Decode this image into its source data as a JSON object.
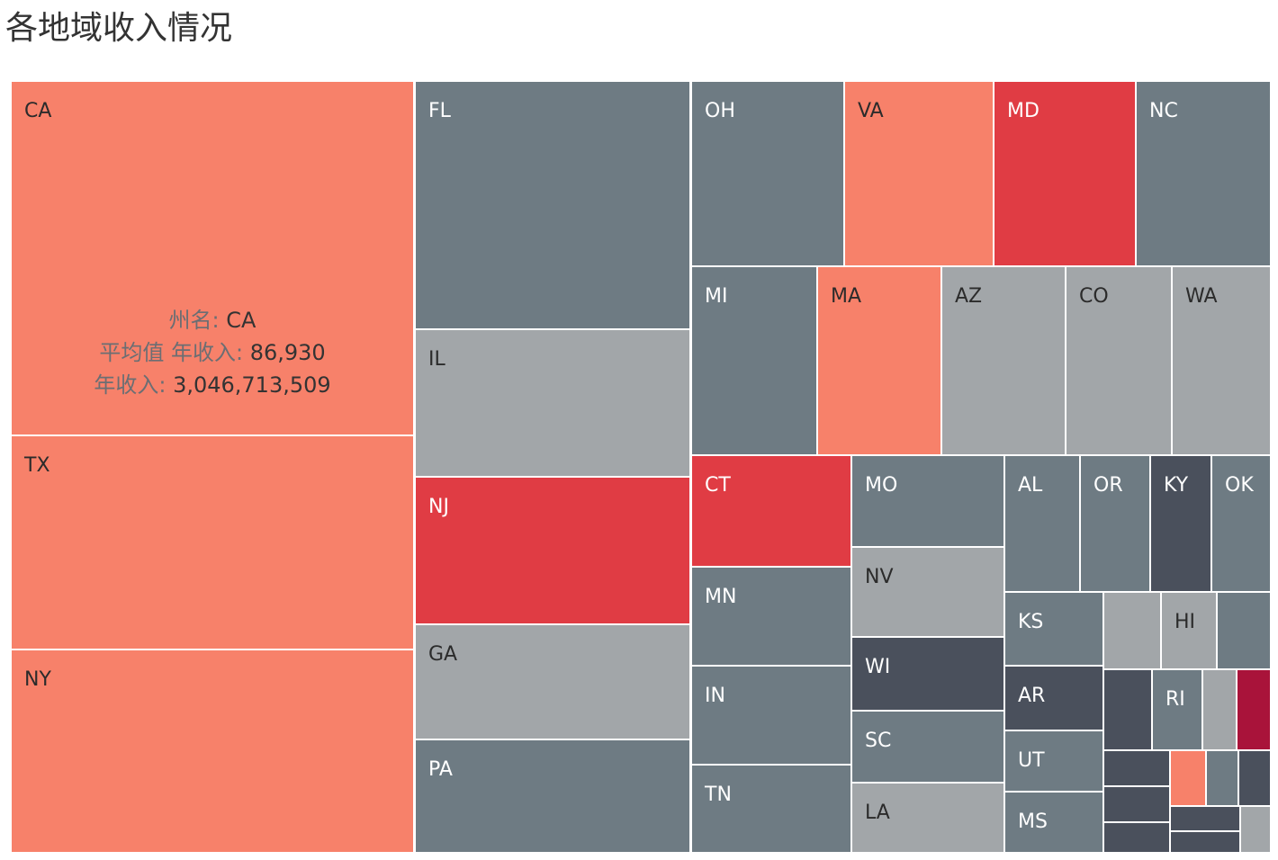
{
  "title": "各地域收入情况",
  "colors": {
    "salmon": "#f7816a",
    "red": "#e03c44",
    "crimson": "#a9133a",
    "slate": "#6e7b83",
    "gray": "#a2a6a9",
    "dark": "#4a505c"
  },
  "tooltip": {
    "state_key": "州名:",
    "state_value": "CA",
    "avg_key": "平均值 年收入:",
    "avg_value": "86,930",
    "sum_key": "年收入:",
    "sum_value": "3,046,713,509"
  },
  "chart_data": {
    "type": "treemap",
    "title": "各地域收入情况",
    "color_legend": "not shown",
    "cells": [
      {
        "label": "CA",
        "color": "salmon",
        "avg_income": 86930,
        "total_income": 3046713509
      },
      {
        "label": "TX",
        "color": "salmon"
      },
      {
        "label": "NY",
        "color": "salmon"
      },
      {
        "label": "FL",
        "color": "slate"
      },
      {
        "label": "IL",
        "color": "gray"
      },
      {
        "label": "NJ",
        "color": "red"
      },
      {
        "label": "GA",
        "color": "gray"
      },
      {
        "label": "PA",
        "color": "slate"
      },
      {
        "label": "OH",
        "color": "slate"
      },
      {
        "label": "VA",
        "color": "salmon"
      },
      {
        "label": "MD",
        "color": "red"
      },
      {
        "label": "NC",
        "color": "slate"
      },
      {
        "label": "MI",
        "color": "slate"
      },
      {
        "label": "MA",
        "color": "salmon"
      },
      {
        "label": "AZ",
        "color": "gray"
      },
      {
        "label": "CO",
        "color": "gray"
      },
      {
        "label": "WA",
        "color": "gray"
      },
      {
        "label": "CT",
        "color": "red"
      },
      {
        "label": "MN",
        "color": "slate"
      },
      {
        "label": "IN",
        "color": "slate"
      },
      {
        "label": "TN",
        "color": "slate"
      },
      {
        "label": "MO",
        "color": "slate"
      },
      {
        "label": "NV",
        "color": "gray"
      },
      {
        "label": "WI",
        "color": "dark"
      },
      {
        "label": "SC",
        "color": "slate"
      },
      {
        "label": "LA",
        "color": "gray"
      },
      {
        "label": "AL",
        "color": "slate"
      },
      {
        "label": "OR",
        "color": "slate"
      },
      {
        "label": "KY",
        "color": "dark"
      },
      {
        "label": "OK",
        "color": "slate"
      },
      {
        "label": "KS",
        "color": "slate"
      },
      {
        "label": "",
        "color": "gray"
      },
      {
        "label": "HI",
        "color": "gray"
      },
      {
        "label": "",
        "color": "slate"
      },
      {
        "label": "AR",
        "color": "dark"
      },
      {
        "label": "UT",
        "color": "slate"
      },
      {
        "label": "MS",
        "color": "slate"
      },
      {
        "label": "",
        "color": "dark"
      },
      {
        "label": "RI",
        "color": "slate"
      },
      {
        "label": "",
        "color": "gray"
      },
      {
        "label": "",
        "color": "crimson"
      },
      {
        "label": "",
        "color": "dark"
      },
      {
        "label": "",
        "color": "dark"
      },
      {
        "label": "",
        "color": "dark"
      },
      {
        "label": "",
        "color": "salmon"
      },
      {
        "label": "",
        "color": "slate"
      },
      {
        "label": "",
        "color": "dark"
      },
      {
        "label": "",
        "color": "dark"
      },
      {
        "label": "",
        "color": "dark"
      },
      {
        "label": "",
        "color": "gray"
      }
    ]
  }
}
